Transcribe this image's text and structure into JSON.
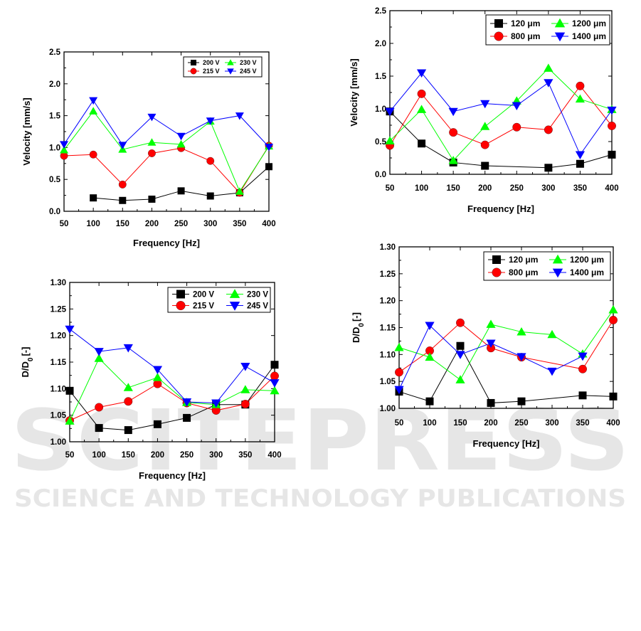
{
  "watermark": {
    "brand": "SCITEPRESS",
    "tagline": "SCIENCE AND TECHNOLOGY PUBLICATIONS"
  },
  "chart_data": [
    {
      "type": "line",
      "xlabel": "Frequency [Hz]",
      "ylabel": "Velocity [mm/s]",
      "x": [
        50,
        100,
        150,
        200,
        250,
        300,
        350,
        400
      ],
      "xlim": [
        50,
        400
      ],
      "ylim": [
        0.0,
        2.5
      ],
      "xticks": [
        "50",
        "100",
        "150",
        "200",
        "250",
        "300",
        "350",
        "400"
      ],
      "yticks": [
        "0.0",
        "0.5",
        "1.0",
        "1.5",
        "2.0",
        "2.5"
      ],
      "legend_position": "top-right",
      "series": [
        {
          "name": "200 V",
          "color": "#000000",
          "marker": "square",
          "values": [
            null,
            0.21,
            0.17,
            0.19,
            0.32,
            0.24,
            0.29,
            0.7
          ]
        },
        {
          "name": "215 V",
          "color": "#ff0000",
          "marker": "circle",
          "values": [
            0.87,
            0.89,
            0.42,
            0.91,
            0.99,
            0.79,
            0.29,
            1.03
          ]
        },
        {
          "name": "230 V",
          "color": "#00ff00",
          "marker": "triangle-up",
          "values": [
            0.96,
            1.57,
            0.97,
            1.08,
            1.05,
            1.41,
            0.31,
            1.02
          ]
        },
        {
          "name": "245 V",
          "color": "#0000ff",
          "marker": "triangle-down",
          "values": [
            1.05,
            1.74,
            1.04,
            1.48,
            1.18,
            1.42,
            1.5,
            1.01
          ]
        }
      ]
    },
    {
      "type": "line",
      "xlabel": "Frequency [Hz]",
      "ylabel": "Velocity [mm/s]",
      "x": [
        50,
        100,
        150,
        200,
        250,
        300,
        350,
        400
      ],
      "xlim": [
        50,
        400
      ],
      "ylim": [
        0.0,
        2.5
      ],
      "xticks": [
        "50",
        "100",
        "150",
        "200",
        "250",
        "300",
        "350",
        "400"
      ],
      "yticks": [
        "0.0",
        "0.5",
        "1.0",
        "1.5",
        "2.0",
        "2.5"
      ],
      "legend_position": "top-right",
      "series": [
        {
          "name": "120 μm",
          "color": "#000000",
          "marker": "square",
          "values": [
            0.96,
            0.47,
            0.18,
            0.13,
            null,
            0.1,
            0.16,
            0.3
          ]
        },
        {
          "name": "800 μm",
          "color": "#ff0000",
          "marker": "circle",
          "values": [
            0.44,
            1.23,
            0.64,
            0.45,
            0.72,
            0.68,
            1.35,
            0.74
          ]
        },
        {
          "name": "1200 μm",
          "color": "#00ff00",
          "marker": "triangle-up",
          "values": [
            0.51,
            0.99,
            0.21,
            0.73,
            1.12,
            1.62,
            1.15,
            0.99
          ]
        },
        {
          "name": "1400 μm",
          "color": "#0000ff",
          "marker": "triangle-down",
          "values": [
            0.96,
            1.55,
            0.96,
            1.08,
            1.05,
            1.4,
            0.3,
            0.98
          ]
        }
      ]
    },
    {
      "type": "line",
      "xlabel": "Frequency [Hz]",
      "ylabel": "D/D0 [-]",
      "x": [
        50,
        100,
        150,
        200,
        250,
        300,
        350,
        400
      ],
      "xlim": [
        50,
        400
      ],
      "ylim": [
        1.0,
        1.3
      ],
      "xticks": [
        "50",
        "100",
        "150",
        "200",
        "250",
        "300",
        "350",
        "400"
      ],
      "yticks": [
        "1.00",
        "1.05",
        "1.10",
        "1.15",
        "1.20",
        "1.25",
        "1.30"
      ],
      "legend_position": "top-right",
      "series": [
        {
          "name": "200 V",
          "color": "#000000",
          "marker": "square",
          "values": [
            1.096,
            1.026,
            1.022,
            1.033,
            1.045,
            1.07,
            1.07,
            1.145
          ]
        },
        {
          "name": "215 V",
          "color": "#ff0000",
          "marker": "circle",
          "values": [
            1.04,
            1.065,
            1.076,
            1.109,
            1.073,
            1.059,
            1.071,
            1.124
          ]
        },
        {
          "name": "230 V",
          "color": "#00ff00",
          "marker": "triangle-up",
          "values": [
            1.039,
            1.157,
            1.102,
            1.121,
            1.074,
            1.07,
            1.098,
            1.096
          ]
        },
        {
          "name": "245 V",
          "color": "#0000ff",
          "marker": "triangle-down",
          "values": [
            1.212,
            1.17,
            1.177,
            1.136,
            1.075,
            1.073,
            1.142,
            1.111
          ]
        }
      ]
    },
    {
      "type": "line",
      "xlabel": "Frequency [Hz]",
      "ylabel": "D/D0 [-]",
      "x": [
        50,
        100,
        150,
        200,
        250,
        300,
        350,
        400
      ],
      "xlim": [
        50,
        400
      ],
      "ylim": [
        1.0,
        1.3
      ],
      "xticks": [
        "50",
        "100",
        "150",
        "200",
        "250",
        "300",
        "350",
        "400"
      ],
      "yticks": [
        "1.00",
        "1.05",
        "1.10",
        "1.15",
        "1.20",
        "1.25",
        "1.30"
      ],
      "legend_position": "top-right",
      "series": [
        {
          "name": "120 μm",
          "color": "#000000",
          "marker": "square",
          "values": [
            1.031,
            1.013,
            1.116,
            1.01,
            1.013,
            null,
            1.024,
            1.022
          ]
        },
        {
          "name": "800 μm",
          "color": "#ff0000",
          "marker": "circle",
          "values": [
            1.067,
            1.107,
            1.159,
            1.112,
            1.095,
            null,
            1.073,
            1.164
          ]
        },
        {
          "name": "1200 μm",
          "color": "#00ff00",
          "marker": "triangle-up",
          "values": [
            1.113,
            1.095,
            1.053,
            1.156,
            1.142,
            1.137,
            1.101,
            1.183
          ]
        },
        {
          "name": "1400 μm",
          "color": "#0000ff",
          "marker": "triangle-down",
          "values": [
            1.035,
            1.154,
            1.1,
            1.121,
            1.096,
            1.069,
            1.097,
            null
          ]
        }
      ]
    }
  ]
}
